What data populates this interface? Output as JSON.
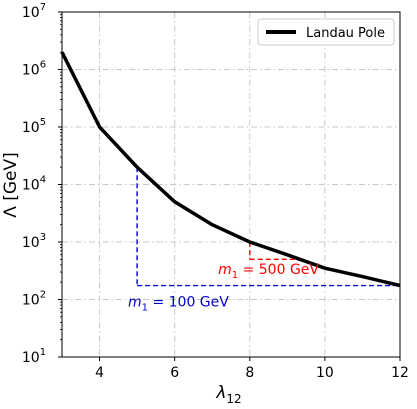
{
  "chart_data": {
    "type": "line",
    "xlabel_symbol": "λ",
    "xlabel_subscript": "12",
    "ylabel": "Λ [GeV]",
    "xlim": [
      3,
      12
    ],
    "ylim_log10": [
      1,
      7
    ],
    "y_scale": "log",
    "x_ticks": [
      "4",
      "6",
      "8",
      "10",
      "12"
    ],
    "x_tick_values": [
      4,
      6,
      8,
      10,
      12
    ],
    "y_tick_exponents": [
      1,
      2,
      3,
      4,
      5,
      6,
      7
    ],
    "y_tick_base": "10",
    "y_tick_sup": [
      "1",
      "2",
      "3",
      "4",
      "5",
      "6",
      "7"
    ],
    "grid": true,
    "legend_placement": "top-right",
    "series": [
      {
        "name": "Landau Pole",
        "color": "#000000",
        "x": [
          3,
          4,
          5,
          6,
          7,
          8,
          9,
          10,
          11,
          12
        ],
        "y": [
          2000000,
          100000,
          20000,
          5000,
          2000,
          1000,
          600,
          350,
          250,
          175
        ]
      }
    ],
    "annotations": [
      {
        "id": "m500",
        "color": "#ff0000",
        "label_italic": "m",
        "label_sub": "1",
        "label_rest": " = 500 GeV",
        "vline_x": 8,
        "vline_from_y": 1000,
        "vline_to_y": 500,
        "hline_y": 500,
        "hline_to_x": 9.2,
        "label_at": [
          8.5,
          280
        ]
      },
      {
        "id": "m100",
        "color": "#0000cc",
        "label_italic": "m",
        "label_sub": "1",
        "label_rest": " = 100 GeV",
        "vline_x": 5,
        "vline_from_y": 20000,
        "vline_to_y": 175,
        "hline_y": 175,
        "hline_to_x": 12,
        "label_at": [
          6.1,
          75
        ]
      }
    ]
  }
}
